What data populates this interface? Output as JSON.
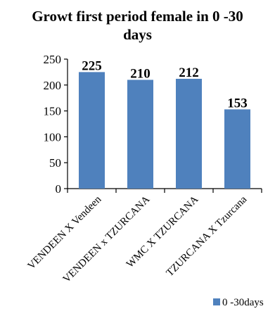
{
  "chart_data": {
    "type": "bar",
    "title_line1": "Growt first period female in  0 -30",
    "title_line2": "days",
    "categories": [
      "VENDEEN X Vendeen",
      "VENDEEN x TZURCANA",
      "WMC X TZURCANA",
      "TZURCANA X Tzurcana"
    ],
    "series": [
      {
        "name": "0 -30days",
        "values": [
          225,
          210,
          212,
          153
        ]
      }
    ],
    "data_labels": [
      "225",
      "210",
      "212",
      "153"
    ],
    "ylim": [
      0,
      250
    ],
    "yticks": [
      0,
      50,
      100,
      150,
      200,
      250
    ],
    "ytick_labels": [
      "0",
      "50",
      "100",
      "150",
      "200",
      "250"
    ],
    "grid": false,
    "legend_position": "bottom-right",
    "colors": {
      "bar": "#4F81BD",
      "axis": "#000000",
      "text": "#000000"
    }
  }
}
